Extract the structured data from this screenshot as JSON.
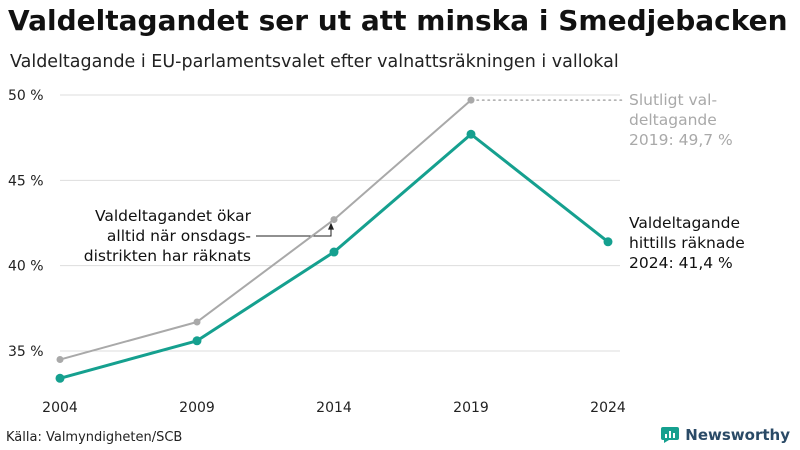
{
  "header": {
    "title": "Valdeltagandet ser ut att minska i Smedjebacken",
    "subtitle": "Valdeltagande i EU-parlamentsvalet efter valnattsräkningen i vallokal"
  },
  "footer": {
    "source": "Källa: Valmyndigheten/SCB",
    "brand": "Newsworthy"
  },
  "colors": {
    "teal": "#15a08f",
    "grey": "#a9a9a9",
    "grid": "#dddddd",
    "brand": "#2a4a66"
  },
  "chart_data": {
    "type": "line",
    "x": [
      2004,
      2009,
      2014,
      2019,
      2024
    ],
    "xticks": [
      "2004",
      "2009",
      "2014",
      "2019",
      "2024"
    ],
    "yticks": [
      {
        "value": 35,
        "label": "35 %"
      },
      {
        "value": 40,
        "label": "40 %"
      },
      {
        "value": 45,
        "label": "45 %"
      },
      {
        "value": 50,
        "label": "50 %"
      }
    ],
    "ylim": [
      32.5,
      50
    ],
    "grid": true,
    "series": [
      {
        "id": "final",
        "color": "#a9a9a9",
        "x": [
          2004,
          2009,
          2014,
          2019
        ],
        "values": [
          34.5,
          36.7,
          42.7,
          49.7
        ]
      },
      {
        "id": "election-night",
        "color": "#15a08f",
        "x": [
          2004,
          2009,
          2014,
          2019,
          2024
        ],
        "values": [
          33.4,
          35.6,
          40.8,
          47.7,
          41.4
        ]
      }
    ],
    "annotations": {
      "final_label": [
        "Slutligt val-",
        "deltagande",
        "2019: 49,7 %"
      ],
      "current_label": [
        "Valdeltagande",
        "hittills räknade",
        "2024: 41,4 %"
      ],
      "note": [
        "Valdeltagandet ökar",
        "alltid när onsdags-",
        "distrikten har räknats"
      ]
    }
  }
}
